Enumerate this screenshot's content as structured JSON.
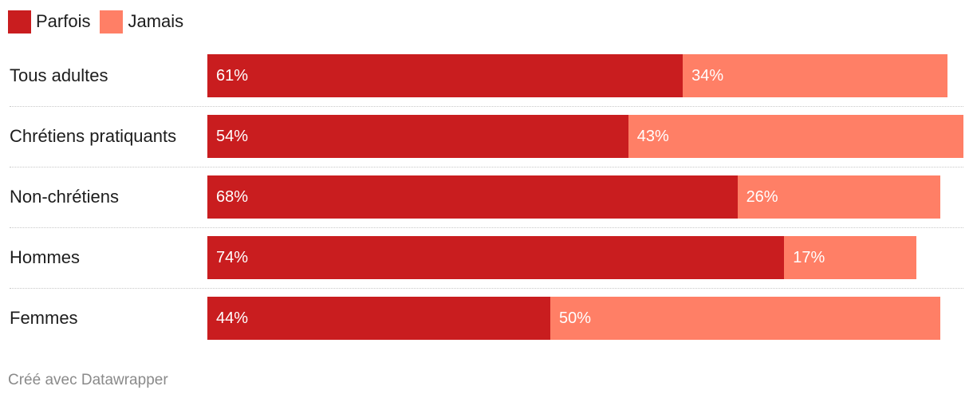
{
  "legend": [
    {
      "label": "Parfois",
      "color": "#c91d1f"
    },
    {
      "label": "Jamais",
      "color": "#ff7f66"
    }
  ],
  "chart_data": {
    "type": "bar",
    "orientation": "horizontal",
    "stacked": true,
    "categories": [
      "Tous adultes",
      "Chrétiens pratiquants",
      "Non-chrétiens",
      "Hommes",
      "Femmes"
    ],
    "series": [
      {
        "name": "Parfois",
        "values": [
          61,
          54,
          68,
          74,
          44
        ],
        "labels": [
          "61%",
          "54%",
          "68%",
          "74%",
          "44%"
        ],
        "color": "#c91d1f"
      },
      {
        "name": "Jamais",
        "values": [
          34,
          43,
          26,
          17,
          50
        ],
        "labels": [
          "34%",
          "43%",
          "26%",
          "17%",
          "50%"
        ],
        "color": "#ff7f66"
      }
    ],
    "xlim": [
      0,
      97
    ],
    "legend_position": "top-left"
  },
  "footer": "Créé avec Datawrapper"
}
